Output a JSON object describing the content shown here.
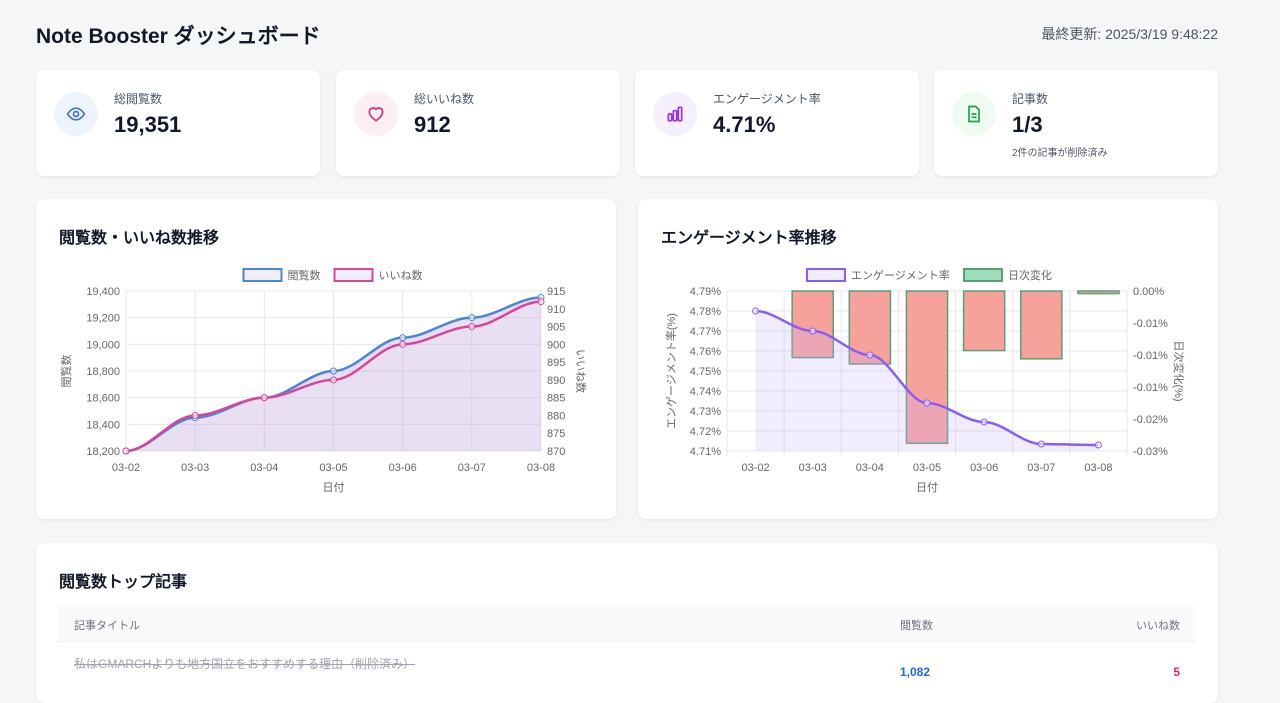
{
  "header": {
    "title": "Note Booster ダッシュボード",
    "last_updated": "最終更新: 2025/3/19 9:48:22"
  },
  "stats": [
    {
      "label": "総閲覧数",
      "value": "19,351",
      "icon": "eye-icon",
      "color": "#3b6fd1",
      "bg": "#eef4fd"
    },
    {
      "label": "総いいね数",
      "value": "912",
      "icon": "heart-icon",
      "color": "#d0307a",
      "bg": "#fdeef5"
    },
    {
      "label": "エンゲージメント率",
      "value": "4.71%",
      "icon": "bar-chart-icon",
      "color": "#9333ea",
      "bg": "#f5f0fd"
    },
    {
      "label": "記事数",
      "value": "1/3",
      "sub": "2件の記事が削除済み",
      "icon": "document-icon",
      "color": "#16a34a",
      "bg": "#edfbf1"
    }
  ],
  "chart1_title": "閲覧数・いいね数推移",
  "chart2_title": "エンゲージメント率推移",
  "chart_data": [
    {
      "type": "line",
      "categories": [
        "03-02",
        "03-03",
        "03-04",
        "03-05",
        "03-06",
        "03-07",
        "03-08"
      ],
      "xlabel": "日付",
      "ylabel": "閲覧数",
      "y2label": "いいね数",
      "ylim": [
        18200,
        19400
      ],
      "yticks": [
        "18,200",
        "18,400",
        "18,600",
        "18,800",
        "19,000",
        "19,200",
        "19,400"
      ],
      "y2lim": [
        870,
        915
      ],
      "y2ticks": [
        "870",
        "875",
        "880",
        "885",
        "890",
        "895",
        "900",
        "905",
        "910",
        "915"
      ],
      "legend": "top",
      "grid": true,
      "series": [
        {
          "name": "閲覧数",
          "axis": "left",
          "color": "#4a86d8",
          "values": [
            18200,
            18450,
            18600,
            18800,
            19050,
            19200,
            19351
          ]
        },
        {
          "name": "いいね数",
          "axis": "right",
          "color": "#d6479a",
          "values": [
            870,
            880,
            885,
            890,
            900,
            905,
            912
          ]
        }
      ]
    },
    {
      "type": "bar+line",
      "categories": [
        "03-02",
        "03-03",
        "03-04",
        "03-05",
        "03-06",
        "03-07",
        "03-08"
      ],
      "xlabel": "日付",
      "ylabel": "エンゲージメント率(%)",
      "y2label": "日次変化(%)",
      "ylim": [
        4.71,
        4.79
      ],
      "yticks": [
        "4.71%",
        "4.72%",
        "4.73%",
        "4.74%",
        "4.75%",
        "4.76%",
        "4.77%",
        "4.78%",
        "4.79%"
      ],
      "y2lim": [
        -0.025,
        0
      ],
      "y2ticks": [
        "-0.03%",
        "-0.02%",
        "-0.01%",
        "-0.01%",
        "-0.01%",
        "0.00%"
      ],
      "legend": "top",
      "grid": true,
      "series": [
        {
          "name": "エンゲージメント率",
          "axis": "left",
          "type": "line",
          "color": "#8b5cf6",
          "values": [
            4.78,
            4.77,
            4.758,
            4.734,
            4.7245,
            4.7135,
            4.713
          ]
        },
        {
          "name": "日次変化",
          "axis": "right",
          "type": "bar",
          "color": "#f7a19b",
          "border": "#5a9e7a",
          "legend_color": "#9fdcbc",
          "values": [
            null,
            -0.0104,
            -0.0114,
            -0.0238,
            -0.0093,
            -0.0106,
            -0.0004
          ]
        }
      ]
    }
  ],
  "table": {
    "title": "閲覧数トップ記事",
    "headers": [
      "記事タイトル",
      "閲覧数",
      "いいね数"
    ],
    "rows": [
      {
        "title": "私はGMARCHよりも地方国立をおすすめする理由（削除済み）",
        "views": "1,082",
        "likes": "5",
        "deleted": true
      }
    ]
  }
}
